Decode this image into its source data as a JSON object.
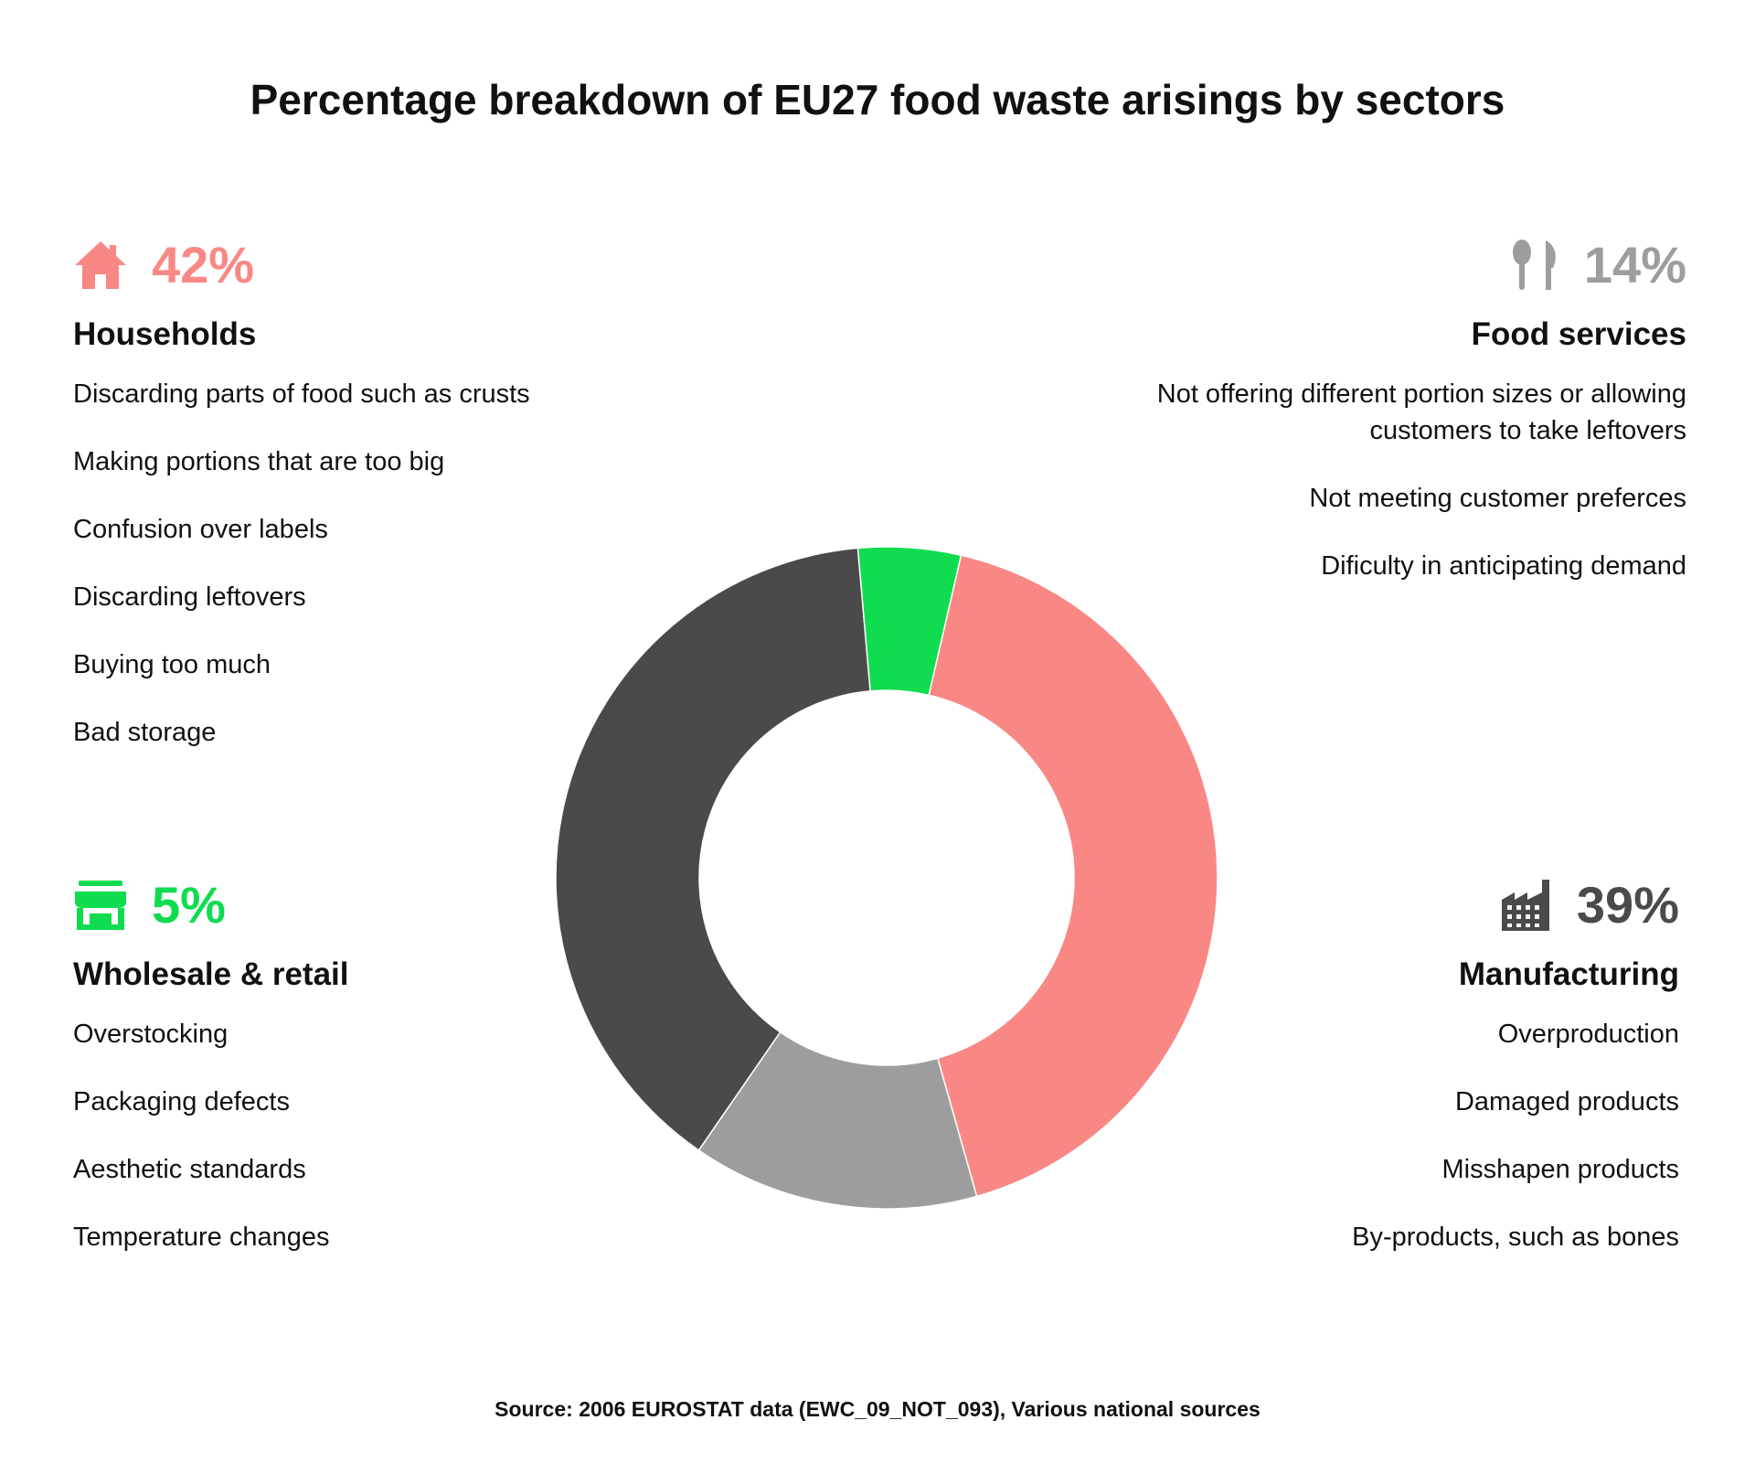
{
  "title": "Percentage breakdown of EU27 food waste arisings by sectors",
  "source": "Source: 2006 EUROSTAT data (EWC_09_NOT_093), Various national sources",
  "colors": {
    "households": "#f98885",
    "food_services": "#9d9d9d",
    "manufacturing": "#4a4a4a",
    "wholesale": "#0fdc4f"
  },
  "sectors": {
    "households": {
      "icon": "house-icon",
      "percent": "42%",
      "name": "Households",
      "items": [
        "Discarding parts of food such as crusts",
        "Making portions that are too big",
        "Confusion over labels",
        "Discarding leftovers",
        "Buying too much",
        "Bad storage"
      ]
    },
    "food_services": {
      "icon": "cutlery-icon",
      "percent": "14%",
      "name": "Food services",
      "items": [
        "Not offering different portion sizes or allowing customers to take leftovers",
        "Not meeting customer preferces",
        "Dificulty in anticipating demand"
      ]
    },
    "wholesale": {
      "icon": "store-icon",
      "percent": "5%",
      "name": "Wholesale & retail",
      "items": [
        "Overstocking",
        "Packaging defects",
        "Aesthetic standards",
        "Temperature changes"
      ]
    },
    "manufacturing": {
      "icon": "factory-icon",
      "percent": "39%",
      "name": "Manufacturing",
      "items": [
        "Overproduction",
        "Damaged products",
        "Misshapen products",
        "By-products, such as bones"
      ]
    }
  },
  "chart_data": {
    "type": "pie",
    "style": "donut",
    "categories": [
      "Households",
      "Food services",
      "Manufacturing",
      "Wholesale & retail"
    ],
    "values": [
      42,
      14,
      39,
      5
    ],
    "colors": [
      "#f98885",
      "#9d9d9d",
      "#4a4a4a",
      "#0fdc4f"
    ],
    "start_angle_deg": 13,
    "direction": "clockwise",
    "legend": "none"
  }
}
